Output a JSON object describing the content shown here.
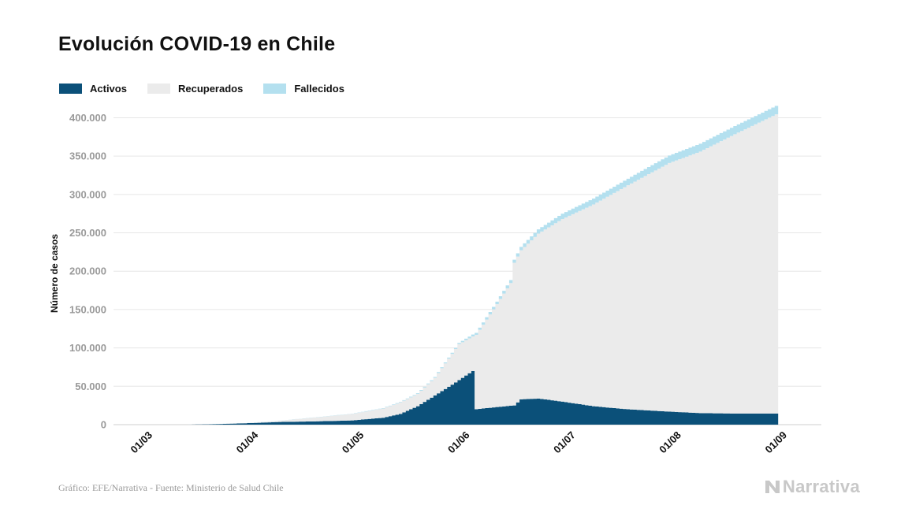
{
  "title": "Evolución COVID-19 en Chile",
  "source": "Gráfico: EFE/Narrativa - Fuente: Ministerio de Salud Chile",
  "brand": "Narrativa",
  "colors": {
    "activos": "#0b5079",
    "recuperados": "#ebebeb",
    "fallecidos": "#b4e0ef",
    "grid": "#e6e6e6",
    "tick_text": "#9a9a9a"
  },
  "chart_data": {
    "type": "area",
    "title": "Evolución COVID-19 en Chile",
    "xlabel": "",
    "ylabel": "Número de casos",
    "stacked": true,
    "grid": true,
    "legend_position": "top-left",
    "x_start_date": "2020-03-01",
    "x_end_date": "2020-09-01",
    "ylim": [
      0,
      420000
    ],
    "yticks": [
      0,
      50000,
      100000,
      150000,
      200000,
      250000,
      300000,
      350000,
      400000
    ],
    "ytick_labels": [
      "0",
      "50.000",
      "100.000",
      "150.000",
      "200.000",
      "250.000",
      "300.000",
      "350.000",
      "400.000"
    ],
    "xtick_labels": [
      "01/03",
      "01/04",
      "01/05",
      "01/06",
      "01/07",
      "01/08",
      "01/09"
    ],
    "series": [
      {
        "name": "Activos",
        "color": "#0b5079",
        "points": [
          [
            "2020-03-03",
            0
          ],
          [
            "2020-03-15",
            50
          ],
          [
            "2020-03-20",
            400
          ],
          [
            "2020-03-25",
            1000
          ],
          [
            "2020-04-01",
            2000
          ],
          [
            "2020-04-10",
            3500
          ],
          [
            "2020-04-20",
            4200
          ],
          [
            "2020-05-01",
            5500
          ],
          [
            "2020-05-10",
            9000
          ],
          [
            "2020-05-15",
            14000
          ],
          [
            "2020-05-20",
            24000
          ],
          [
            "2020-05-25",
            38000
          ],
          [
            "2020-05-31",
            55000
          ],
          [
            "2020-06-05",
            70000
          ],
          [
            "2020-06-06",
            20000
          ],
          [
            "2020-06-12",
            23000
          ],
          [
            "2020-06-17",
            25000
          ],
          [
            "2020-06-19",
            33000
          ],
          [
            "2020-06-24",
            34000
          ],
          [
            "2020-07-01",
            30000
          ],
          [
            "2020-07-10",
            24000
          ],
          [
            "2020-07-20",
            20000
          ],
          [
            "2020-08-01",
            17000
          ],
          [
            "2020-08-10",
            15000
          ],
          [
            "2020-08-20",
            14500
          ],
          [
            "2020-09-01",
            14500
          ]
        ]
      },
      {
        "name": "Recuperados",
        "color": "#ebebeb",
        "points": [
          [
            "2020-03-03",
            0
          ],
          [
            "2020-03-20",
            0
          ],
          [
            "2020-04-01",
            200
          ],
          [
            "2020-04-10",
            1600
          ],
          [
            "2020-04-20",
            5000
          ],
          [
            "2020-05-01",
            8500
          ],
          [
            "2020-05-10",
            12000
          ],
          [
            "2020-05-15",
            15000
          ],
          [
            "2020-05-20",
            16000
          ],
          [
            "2020-05-25",
            23000
          ],
          [
            "2020-06-01",
            47000
          ],
          [
            "2020-06-05",
            45000
          ],
          [
            "2020-06-06",
            97000
          ],
          [
            "2020-06-12",
            134000
          ],
          [
            "2020-06-16",
            160000
          ],
          [
            "2020-06-17",
            186000
          ],
          [
            "2020-06-24",
            215000
          ],
          [
            "2020-07-01",
            238000
          ],
          [
            "2020-07-10",
            263000
          ],
          [
            "2020-07-20",
            292000
          ],
          [
            "2020-08-01",
            324000
          ],
          [
            "2020-08-10",
            341000
          ],
          [
            "2020-08-20",
            364000
          ],
          [
            "2020-09-01",
            390000
          ]
        ]
      },
      {
        "name": "Fallecidos",
        "color": "#b4e0ef",
        "points": [
          [
            "2020-03-03",
            0
          ],
          [
            "2020-04-01",
            50
          ],
          [
            "2020-05-01",
            300
          ],
          [
            "2020-05-15",
            700
          ],
          [
            "2020-06-01",
            1500
          ],
          [
            "2020-06-05",
            2500
          ],
          [
            "2020-06-17",
            4000
          ],
          [
            "2020-06-24",
            5500
          ],
          [
            "2020-07-01",
            7000
          ],
          [
            "2020-07-20",
            8500
          ],
          [
            "2020-07-22",
            8900
          ],
          [
            "2020-08-01",
            9800
          ],
          [
            "2020-08-15",
            10500
          ],
          [
            "2020-09-01",
            11000
          ]
        ]
      }
    ]
  }
}
